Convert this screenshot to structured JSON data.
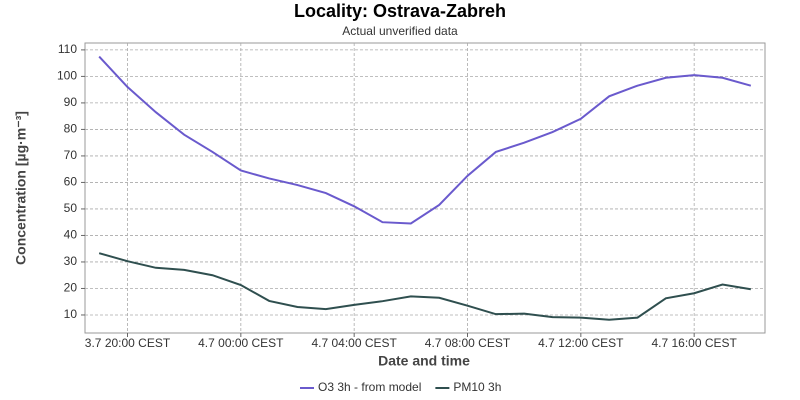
{
  "chart_data": {
    "type": "line",
    "title": "Locality: Ostrava-Zabreh",
    "subtitle": "Actual unverified data",
    "x_label": "Date and time",
    "y_label": "Concentration [µg·m⁻³]",
    "categories": [
      null,
      "3.7 20:00 CEST",
      null,
      null,
      null,
      "4.7 00:00 CEST",
      null,
      null,
      null,
      "4.7 04:00 CEST",
      null,
      null,
      null,
      "4.7 08:00 CEST",
      null,
      null,
      null,
      "4.7 12:00 CEST",
      null,
      null,
      null,
      "4.7 16:00 CEST",
      null,
      null
    ],
    "series": [
      {
        "name": "O3 3h - from model",
        "color": "#6a5acd",
        "values": [
          107.5,
          96,
          86.5,
          78,
          71.5,
          64.5,
          61.5,
          59,
          56,
          51,
          45,
          44.5,
          51.5,
          62.5,
          71.5,
          75,
          79,
          84,
          92.5,
          96.5,
          99.5,
          100.5,
          99.5,
          96.5
        ]
      },
      {
        "name": "PM10 3h",
        "color": "#2f4f4f",
        "values": [
          33.3,
          30.3,
          27.8,
          27,
          25,
          21.3,
          15.3,
          13,
          12.2,
          13.8,
          15.2,
          17,
          16.5,
          13.5,
          10.3,
          10.5,
          9.2,
          9,
          8.2,
          9,
          16.3,
          18.2,
          21.5,
          19.7
        ]
      }
    ],
    "ylim": [
      3.2,
      112.6
    ],
    "yticks": [
      10,
      20,
      30,
      40,
      50,
      60,
      70,
      80,
      90,
      100,
      110
    ],
    "grid": true,
    "legend": "bottom"
  }
}
